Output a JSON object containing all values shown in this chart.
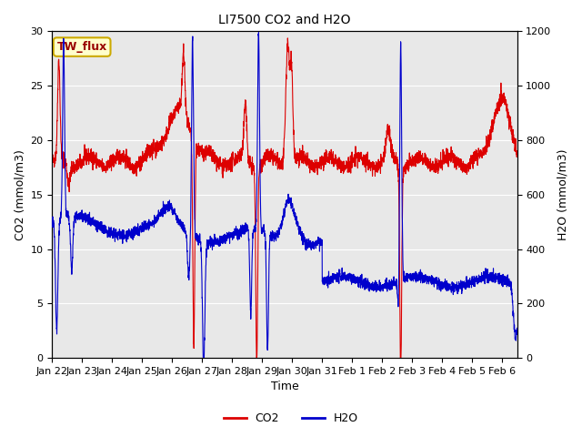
{
  "title": "LI7500 CO2 and H2O",
  "xlabel": "Time",
  "ylabel_left": "CO2 (mmol/m3)",
  "ylabel_right": "H2O (mmol/m3)",
  "legend_label": "TW_flux",
  "co2_label": "CO2",
  "h2o_label": "H2O",
  "co2_color": "#dd0000",
  "h2o_color": "#0000cc",
  "fig_bg_color": "#ffffff",
  "plot_bg_color": "#e8e8e8",
  "grid_color": "#ffffff",
  "ylim_left": [
    0,
    30
  ],
  "ylim_right": [
    0,
    1200
  ],
  "xlim": [
    0,
    15.5
  ],
  "x_tick_labels": [
    "Jan 22",
    "Jan 23",
    "Jan 24",
    "Jan 25",
    "Jan 26",
    "Jan 27",
    "Jan 28",
    "Jan 29",
    "Jan 30",
    "Jan 31",
    "Feb 1",
    "Feb 2",
    "Feb 3",
    "Feb 4",
    "Feb 5",
    "Feb 6"
  ],
  "yticks_left": [
    0,
    5,
    10,
    15,
    20,
    25,
    30
  ],
  "yticks_right": [
    0,
    200,
    400,
    600,
    800,
    1000,
    1200
  ],
  "n_days": 15.5,
  "seed": 42,
  "linewidth": 0.8,
  "tw_flux_facecolor": "#ffffcc",
  "tw_flux_edgecolor": "#ccaa00",
  "title_fontsize": 10,
  "axis_label_fontsize": 9,
  "tick_fontsize": 8
}
